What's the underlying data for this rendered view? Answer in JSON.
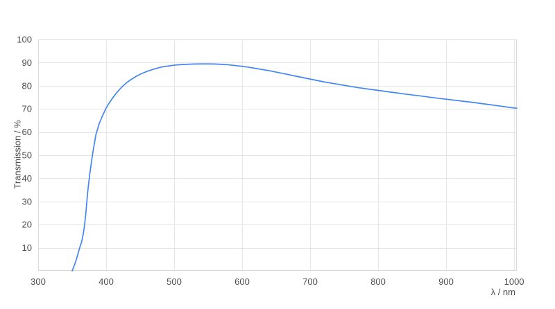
{
  "page": {
    "background_color": "#ffffff"
  },
  "chart_data": {
    "type": "line",
    "title": "",
    "xlabel": "λ / nm",
    "ylabel": "Transmission / %",
    "xlim": [
      300,
      1004
    ],
    "ylim": [
      0,
      100
    ],
    "x_ticks": [
      300,
      400,
      500,
      600,
      700,
      800,
      900,
      1000
    ],
    "y_ticks": [
      10,
      20,
      30,
      40,
      50,
      60,
      70,
      80,
      90,
      100
    ],
    "grid": true,
    "legend_position": "none",
    "colors": {
      "line": "#4285f4",
      "grid": "#e6e6e6",
      "border": "#d9d9d9",
      "text": "#4d4d4d",
      "background": "#ffffff"
    },
    "series": [
      {
        "name": "Transmission",
        "points": [
          [
            350,
            0
          ],
          [
            352,
            1.5
          ],
          [
            354,
            3
          ],
          [
            356,
            4.8
          ],
          [
            358,
            6.8
          ],
          [
            360,
            8.9
          ],
          [
            362,
            10.9
          ],
          [
            364,
            12.6
          ],
          [
            366,
            15.5
          ],
          [
            368,
            19.2
          ],
          [
            370,
            24.5
          ],
          [
            373,
            34.5
          ],
          [
            376,
            42
          ],
          [
            380,
            50.4
          ],
          [
            385,
            59
          ],
          [
            390,
            63.8
          ],
          [
            395,
            67.3
          ],
          [
            400,
            70.4
          ],
          [
            405,
            72.8
          ],
          [
            410,
            74.9
          ],
          [
            415,
            76.8
          ],
          [
            420,
            78.5
          ],
          [
            425,
            80
          ],
          [
            430,
            81.3
          ],
          [
            435,
            82.4
          ],
          [
            440,
            83.3
          ],
          [
            445,
            84.2
          ],
          [
            450,
            85
          ],
          [
            455,
            85.6
          ],
          [
            460,
            86.2
          ],
          [
            465,
            86.7
          ],
          [
            470,
            87.2
          ],
          [
            475,
            87.6
          ],
          [
            480,
            88
          ],
          [
            485,
            88.3
          ],
          [
            490,
            88.5
          ],
          [
            495,
            88.7
          ],
          [
            500,
            88.9
          ],
          [
            510,
            89.15
          ],
          [
            520,
            89.3
          ],
          [
            530,
            89.4
          ],
          [
            540,
            89.45
          ],
          [
            550,
            89.45
          ],
          [
            560,
            89.4
          ],
          [
            570,
            89.25
          ],
          [
            580,
            89.05
          ],
          [
            590,
            88.75
          ],
          [
            600,
            88.4
          ],
          [
            610,
            88
          ],
          [
            620,
            87.5
          ],
          [
            630,
            87
          ],
          [
            640,
            86.5
          ],
          [
            650,
            85.9
          ],
          [
            660,
            85.3
          ],
          [
            670,
            84.7
          ],
          [
            680,
            84.1
          ],
          [
            690,
            83.5
          ],
          [
            700,
            82.9
          ],
          [
            710,
            82.3
          ],
          [
            720,
            81.7
          ],
          [
            730,
            81.2
          ],
          [
            740,
            80.7
          ],
          [
            750,
            80.2
          ],
          [
            760,
            79.7
          ],
          [
            770,
            79.2
          ],
          [
            780,
            78.8
          ],
          [
            790,
            78.4
          ],
          [
            800,
            78
          ],
          [
            820,
            77.2
          ],
          [
            840,
            76.4
          ],
          [
            860,
            75.7
          ],
          [
            880,
            74.9
          ],
          [
            900,
            74.2
          ],
          [
            920,
            73.5
          ],
          [
            940,
            72.8
          ],
          [
            960,
            72
          ],
          [
            980,
            71.2
          ],
          [
            1000,
            70.4
          ],
          [
            1004,
            70.3
          ]
        ]
      }
    ]
  }
}
